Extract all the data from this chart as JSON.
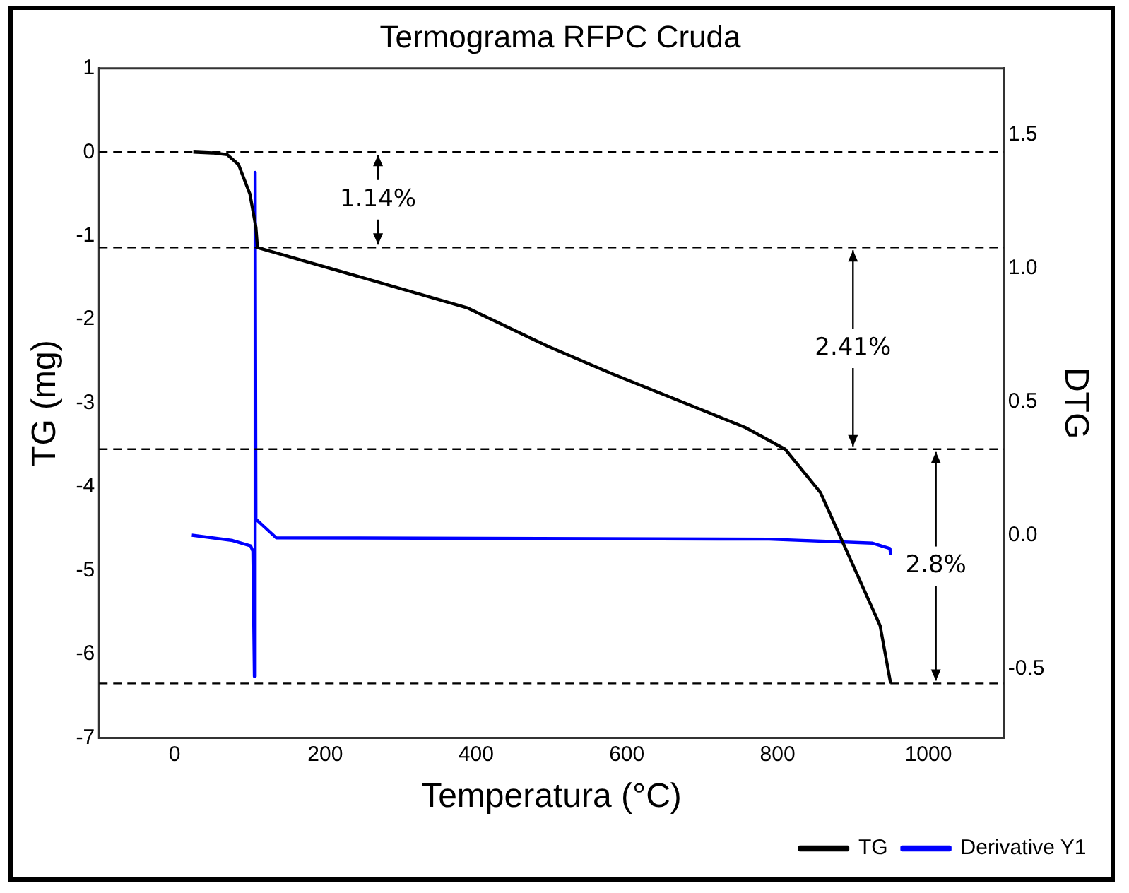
{
  "chart_data": {
    "type": "line",
    "title": "Termograma RFPC Cruda",
    "xlabel": "Temperatura (°C)",
    "ylabel": "TG (mg)",
    "y2label": "DTG",
    "xlim": [
      -100,
      1100
    ],
    "xticks": [
      0,
      200,
      400,
      600,
      800,
      1000
    ],
    "ylim": [
      -7,
      1
    ],
    "yticks": [
      -7,
      -6,
      -5,
      -4,
      -3,
      -2,
      -1,
      0,
      1
    ],
    "y2lim": [
      -0.76,
      1.75
    ],
    "y2ticks": [
      {
        "value": -0.5,
        "label": "-0.5"
      },
      {
        "value": 0,
        "label": "0.0"
      },
      {
        "value": 0.5,
        "label": "0.5"
      },
      {
        "value": 1,
        "label": "1.0"
      },
      {
        "value": 1.5,
        "label": "1.5"
      }
    ],
    "series": [
      {
        "name": "TG",
        "color": "#000000",
        "x": [
          25,
          50,
          70,
          85,
          100,
          108,
          110,
          388,
          495,
          578,
          757,
          810,
          857,
          936,
          950
        ],
        "values": [
          0,
          -0.01,
          -0.03,
          -0.15,
          -0.5,
          -0.9,
          -1.14,
          -1.86,
          -2.32,
          -2.64,
          -3.29,
          -3.55,
          -4.07,
          -5.66,
          -6.35
        ]
      },
      {
        "name": "Derivative Y1",
        "color": "#0000ff",
        "axis": "y2",
        "x": [
          23,
          77,
          101,
          104,
          106,
          107,
          108,
          135,
          789,
          926,
          949,
          950
        ],
        "values": [
          0,
          -0.02,
          -0.04,
          -0.06,
          -0.53,
          1.36,
          0.06,
          -0.01,
          -0.015,
          -0.03,
          -0.05,
          -0.075
        ]
      }
    ],
    "ref_lines": [
      {
        "axis": "y",
        "value": 0,
        "color": "#000000",
        "line_style": "dashed"
      },
      {
        "axis": "y",
        "value": -1.14,
        "color": "#000000",
        "line_style": "dashed"
      },
      {
        "axis": "y",
        "value": -3.55,
        "color": "#000000",
        "line_style": "dashed"
      },
      {
        "axis": "y",
        "value": -6.35,
        "color": "#000000",
        "line_style": "dashed"
      }
    ],
    "annotations": [
      {
        "text": "1.14%",
        "x": 270,
        "y": -1.14
      },
      {
        "text": "2.41%",
        "x": 900,
        "y": -3.55
      },
      {
        "text": "2.8%",
        "x": 1010,
        "y": -6.35
      }
    ],
    "grid": false,
    "legend": "bottom right",
    "marker": "none",
    "line_style": "solid"
  }
}
